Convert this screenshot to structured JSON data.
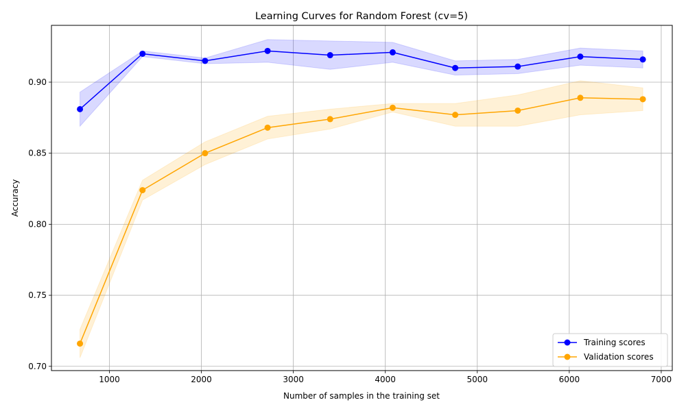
{
  "chart_data": {
    "type": "line",
    "title": "Learning Curves for Random Forest (cv=5)",
    "xlabel": "Number of samples in the training set",
    "ylabel": "Accuracy",
    "xlim": [
      370,
      7120
    ],
    "ylim": [
      0.697,
      0.94
    ],
    "xticks": [
      1000,
      2000,
      3000,
      4000,
      5000,
      6000,
      7000
    ],
    "yticks": [
      0.7,
      0.75,
      0.8,
      0.85,
      0.9
    ],
    "ytick_labels": [
      "0.70",
      "0.75",
      "0.80",
      "0.85",
      "0.90"
    ],
    "grid": true,
    "legend_position": "lower-right",
    "x": [
      680,
      1360,
      2040,
      2720,
      3400,
      4080,
      4760,
      5440,
      6120,
      6800
    ],
    "series": [
      {
        "name": "Training scores",
        "color": "#0000ff",
        "band_color": "#0000ff",
        "values": [
          0.881,
          0.92,
          0.915,
          0.922,
          0.919,
          0.921,
          0.91,
          0.911,
          0.918,
          0.916
        ],
        "upper": [
          0.893,
          0.922,
          0.917,
          0.93,
          0.929,
          0.928,
          0.915,
          0.916,
          0.924,
          0.922
        ],
        "lower": [
          0.869,
          0.918,
          0.913,
          0.914,
          0.909,
          0.914,
          0.905,
          0.906,
          0.912,
          0.91
        ]
      },
      {
        "name": "Validation scores",
        "color": "#ffa500",
        "band_color": "#ffa500",
        "values": [
          0.716,
          0.824,
          0.85,
          0.868,
          0.874,
          0.882,
          0.877,
          0.88,
          0.889,
          0.888
        ],
        "upper": [
          0.726,
          0.831,
          0.858,
          0.876,
          0.881,
          0.885,
          0.885,
          0.891,
          0.901,
          0.896
        ],
        "lower": [
          0.706,
          0.817,
          0.842,
          0.86,
          0.867,
          0.879,
          0.869,
          0.869,
          0.877,
          0.88
        ]
      }
    ]
  }
}
